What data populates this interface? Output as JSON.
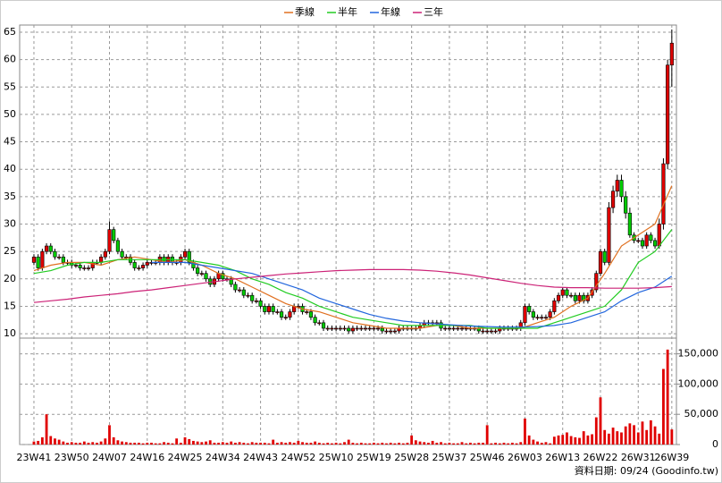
{
  "chart_data": {
    "type": "candlestick",
    "up_color": "#e00000",
    "down_color": "#00cc00",
    "volume_color": "#e00000",
    "grid": true,
    "annotation": "資料日期: 09/24 (Goodinfo.tw)",
    "xlim": [
      -3.4,
      153.1
    ],
    "xticks": [
      {
        "value": 0,
        "label": "23W41"
      },
      {
        "value": 9,
        "label": "23W50"
      },
      {
        "value": 18,
        "label": "24W07"
      },
      {
        "value": 27,
        "label": "24W16"
      },
      {
        "value": 36,
        "label": "24W25"
      },
      {
        "value": 45,
        "label": "24W34"
      },
      {
        "value": 54,
        "label": "24W43"
      },
      {
        "value": 63,
        "label": "24W52"
      },
      {
        "value": 72,
        "label": "25W10"
      },
      {
        "value": 81,
        "label": "25W19"
      },
      {
        "value": 90,
        "label": "25W28"
      },
      {
        "value": 99,
        "label": "25W37"
      },
      {
        "value": 108,
        "label": "25W46"
      },
      {
        "value": 117,
        "label": "26W03"
      },
      {
        "value": 126,
        "label": "26W13"
      },
      {
        "value": 135,
        "label": "26W22"
      },
      {
        "value": 144,
        "label": "26W31"
      },
      {
        "value": 152,
        "label": "26W39"
      }
    ],
    "ylim": [
      9.2,
      66.3
    ],
    "yticks": [
      10,
      15,
      20,
      25,
      30,
      35,
      40,
      45,
      50,
      55,
      60,
      65
    ],
    "y2lim": [
      0,
      176000
    ],
    "y2ticks": [
      0,
      {
        "value": 50000,
        "label": "50,000"
      },
      {
        "value": 100000,
        "label": "100,000"
      },
      {
        "value": 150000,
        "label": "150,000"
      }
    ],
    "open": [
      23,
      24,
      22,
      25,
      26,
      25,
      24,
      24,
      23,
      23,
      22.5,
      22.5,
      22,
      22,
      22,
      23,
      23,
      24,
      25,
      29,
      27,
      25,
      24,
      24,
      23,
      22,
      22,
      22.5,
      23,
      23,
      23,
      24,
      23,
      24,
      23,
      23,
      24,
      25,
      23,
      22,
      21,
      21,
      20,
      19,
      20,
      21,
      20,
      20,
      19,
      18,
      18,
      17,
      17,
      16,
      16,
      15,
      14,
      15,
      14,
      14,
      13,
      13,
      14,
      15,
      15,
      14,
      14,
      13,
      12,
      12,
      11,
      11,
      11,
      11,
      11,
      11,
      10.5,
      11,
      11,
      11,
      11,
      11,
      11,
      11,
      10.5,
      10.5,
      10.5,
      10.5,
      11,
      11,
      11,
      11,
      11,
      11.5,
      12,
      12,
      12,
      12,
      11,
      11,
      11,
      11,
      11,
      11,
      11,
      11,
      11,
      10.5,
      10.5,
      10.5,
      10.5,
      10.5,
      11,
      11,
      11,
      11,
      11,
      12,
      15,
      14,
      13,
      13,
      13,
      13,
      14,
      16,
      17,
      18,
      17,
      17,
      16,
      17,
      16,
      17,
      18,
      21,
      25,
      23,
      33,
      36,
      38,
      35,
      32,
      28,
      27,
      27,
      26,
      28,
      27,
      26,
      30,
      41,
      59
    ],
    "high": [
      24.5,
      24.5,
      25.5,
      26.5,
      26.5,
      25.5,
      24.5,
      24.5,
      23.5,
      23.5,
      23,
      23,
      22.5,
      22.5,
      23.5,
      23.5,
      24.5,
      25.5,
      30.5,
      29.5,
      27.5,
      25.5,
      24.5,
      24.5,
      23.5,
      22.5,
      23,
      23.5,
      23.5,
      23.5,
      24.5,
      24.5,
      24.5,
      24.5,
      23.5,
      24.5,
      25.5,
      25.5,
      23.5,
      22.5,
      21.5,
      21.5,
      20.5,
      20.5,
      21.5,
      21.5,
      20.5,
      20.5,
      19.5,
      18.5,
      18.5,
      17.5,
      17.5,
      16.5,
      16.5,
      15.5,
      15.5,
      15.5,
      14.5,
      14.5,
      13.5,
      14.5,
      15.5,
      15.5,
      15.5,
      14.5,
      14.5,
      13.5,
      12.5,
      12.5,
      11.5,
      11.5,
      11.5,
      11.5,
      11.5,
      11.5,
      11.5,
      11.5,
      11.5,
      11.5,
      11.5,
      11.5,
      11.5,
      11.5,
      11,
      11,
      11,
      11.5,
      11.5,
      11.5,
      11.5,
      11.5,
      12,
      12.5,
      12.5,
      12.5,
      12.5,
      12.5,
      11.5,
      11.5,
      11.5,
      11.5,
      11.5,
      11.5,
      11.5,
      11.5,
      11.5,
      11,
      11,
      11,
      11,
      11.5,
      11.5,
      11.5,
      11.5,
      11.5,
      12.5,
      15.5,
      15.5,
      14.5,
      13.5,
      13.5,
      13.5,
      14.5,
      16.5,
      17.5,
      18.5,
      18.5,
      17.5,
      17.5,
      17.5,
      17.5,
      17.5,
      18.5,
      21.5,
      25.5,
      25.5,
      34,
      37,
      39,
      39,
      36,
      33,
      28.5,
      27.5,
      27.5,
      28.5,
      28.5,
      27.5,
      31,
      42,
      60,
      65.5
    ],
    "low": [
      22.5,
      21.5,
      21.5,
      24.5,
      24.5,
      23.5,
      23.5,
      22.5,
      22.5,
      22,
      22,
      21.5,
      21.5,
      21.5,
      21.5,
      22.5,
      22.5,
      23.5,
      24.5,
      26.5,
      24.5,
      23.5,
      23.5,
      22.5,
      21.5,
      21.5,
      21.5,
      22,
      22.5,
      22.5,
      22.5,
      22.5,
      22.5,
      22.5,
      22.5,
      22.5,
      23.5,
      22.5,
      21.5,
      20.5,
      20.5,
      19.5,
      18.5,
      18.5,
      19.5,
      19.5,
      19.5,
      18.5,
      17.5,
      17.5,
      16.5,
      16.5,
      15.5,
      15.5,
      14.5,
      13.5,
      13.5,
      13.5,
      13.5,
      12.5,
      12.5,
      12.5,
      13.5,
      14.5,
      13.5,
      13.5,
      12.5,
      11.5,
      11.5,
      10.5,
      10.5,
      10.5,
      10.5,
      10.5,
      10.5,
      10,
      10,
      10.5,
      10.5,
      10.5,
      10.5,
      10.5,
      10.5,
      10,
      10,
      10,
      10,
      10,
      10.5,
      10.5,
      10.5,
      10.5,
      10.5,
      11,
      11.5,
      11.5,
      11.5,
      10.5,
      10.5,
      10.5,
      10.5,
      10.5,
      10.5,
      10.5,
      10.5,
      10.5,
      10,
      10,
      10,
      10,
      10,
      10,
      10.5,
      10.5,
      10.5,
      10.5,
      10.5,
      11.5,
      13.5,
      12.5,
      12.5,
      12.5,
      12.5,
      12.5,
      13.5,
      15.5,
      16.5,
      16.5,
      16.5,
      15.5,
      15.5,
      15.5,
      15.5,
      16.5,
      17.5,
      20.5,
      22.5,
      22.5,
      32,
      35,
      34,
      31,
      27.5,
      26.5,
      26.5,
      25.5,
      25.5,
      26.5,
      25.5,
      25.5,
      29,
      40,
      55
    ],
    "close": [
      24,
      22,
      25,
      26,
      25,
      24,
      24,
      23,
      23,
      22.5,
      22.5,
      22,
      22,
      22,
      23,
      23,
      24,
      25,
      29,
      27,
      25,
      24,
      24,
      23,
      22,
      22,
      22.5,
      23,
      23,
      23,
      24,
      23,
      24,
      23,
      23,
      24,
      25,
      23,
      22,
      21,
      21,
      20,
      19,
      20,
      21,
      20,
      20,
      19,
      18,
      18,
      17,
      17,
      16,
      16,
      15,
      14,
      15,
      14,
      14,
      13,
      13,
      14,
      15,
      15,
      14,
      14,
      13,
      12,
      12,
      11,
      11,
      11,
      11,
      11,
      11,
      10.5,
      11,
      11,
      11,
      11,
      11,
      11,
      11,
      10.5,
      10.5,
      10.5,
      10.5,
      11,
      11,
      11,
      11,
      11,
      11.5,
      12,
      12,
      12,
      12,
      11,
      11,
      11,
      11,
      11,
      11,
      11,
      11,
      11,
      10.5,
      10.5,
      10.5,
      10.5,
      10.5,
      11,
      11,
      11,
      11,
      11,
      12,
      15,
      14,
      13,
      13,
      13,
      13,
      14,
      16,
      17,
      18,
      17,
      17,
      16,
      17,
      16,
      17,
      18,
      21,
      25,
      23,
      33,
      36,
      38,
      35,
      32,
      28,
      27,
      27,
      26,
      28,
      27,
      26,
      30,
      41,
      59,
      63
    ],
    "volume": [
      5000,
      6000,
      12000,
      50000,
      14000,
      10000,
      8000,
      5000,
      3000,
      4000,
      3000,
      3000,
      5000,
      3000,
      4000,
      3000,
      5000,
      10000,
      32000,
      12000,
      7000,
      5000,
      4000,
      3000,
      3000,
      3000,
      2000,
      3000,
      3000,
      2000,
      2000,
      4000,
      3000,
      2000,
      10000,
      3000,
      12000,
      9000,
      6000,
      5000,
      4000,
      5000,
      7000,
      3000,
      3000,
      4000,
      3000,
      5000,
      3000,
      4000,
      3000,
      2000,
      4000,
      3000,
      3000,
      3000,
      2000,
      8000,
      3000,
      4000,
      3000,
      4000,
      3000,
      6000,
      4000,
      3000,
      3000,
      5000,
      3000,
      2000,
      3000,
      2000,
      3000,
      2000,
      4000,
      8000,
      3000,
      2000,
      3000,
      2000,
      2000,
      3000,
      2000,
      3000,
      2000,
      3000,
      2000,
      3000,
      2000,
      3000,
      15000,
      7000,
      5000,
      4000,
      3000,
      6000,
      3000,
      4000,
      2000,
      3000,
      2000,
      2000,
      4000,
      2000,
      3000,
      2000,
      3000,
      3000,
      32000,
      2000,
      3000,
      2000,
      3000,
      2000,
      3000,
      2000,
      4000,
      43000,
      15000,
      8000,
      5000,
      3000,
      4000,
      2000,
      13000,
      15000,
      16000,
      20000,
      14000,
      12000,
      11000,
      22000,
      15000,
      17000,
      45000,
      78000,
      24000,
      18000,
      28000,
      22000,
      20000,
      30000,
      35000,
      32000,
      20000,
      38000,
      24000,
      40000,
      30000,
      18000,
      125000,
      157000,
      25000
    ],
    "series": [
      {
        "name": "季線",
        "color": "#e07020",
        "x": [
          0,
          4,
          8,
          12,
          16,
          20,
          24,
          28,
          32,
          36,
          40,
          44,
          48,
          52,
          56,
          60,
          64,
          68,
          72,
          76,
          80,
          84,
          88,
          92,
          96,
          100,
          104,
          108,
          112,
          116,
          120,
          124,
          128,
          132,
          136,
          140,
          144,
          148,
          152
        ],
        "values": [
          21.5,
          22.5,
          23,
          23,
          22.5,
          23.5,
          24,
          23.5,
          23,
          23.5,
          22.5,
          21,
          20,
          18.5,
          17,
          15.5,
          14.5,
          14,
          13,
          12,
          11.5,
          11,
          11,
          11,
          11.5,
          11.5,
          11,
          11,
          11,
          11,
          12,
          13,
          15,
          16.5,
          21,
          26,
          28,
          30,
          37
        ]
      },
      {
        "name": "半年",
        "color": "#22cc22",
        "x": [
          0,
          4,
          8,
          12,
          16,
          20,
          24,
          28,
          32,
          36,
          40,
          44,
          48,
          52,
          56,
          60,
          64,
          68,
          72,
          76,
          80,
          84,
          88,
          92,
          96,
          100,
          104,
          108,
          112,
          116,
          120,
          124,
          128,
          132,
          136,
          140,
          144,
          148,
          152
        ],
        "values": [
          21,
          21.5,
          22.5,
          23,
          23,
          23.5,
          23.5,
          23.5,
          23.5,
          23.5,
          23,
          22.5,
          21.5,
          20,
          19,
          17.5,
          16.5,
          15,
          14,
          13,
          12.5,
          12,
          11.5,
          11.5,
          11.5,
          11.5,
          11.5,
          11,
          11,
          11,
          11,
          12,
          13,
          14,
          15,
          18,
          23,
          25,
          29
        ]
      },
      {
        "name": "年線",
        "color": "#2266dd",
        "x": [
          28,
          32,
          36,
          40,
          44,
          48,
          52,
          56,
          60,
          64,
          68,
          72,
          76,
          80,
          84,
          88,
          92,
          96,
          100,
          104,
          108,
          112,
          116,
          120,
          124,
          128,
          132,
          136,
          140,
          144,
          148,
          152
        ],
        "values": [
          23,
          23,
          23,
          22.5,
          22,
          21.5,
          21,
          20,
          19,
          18,
          16.5,
          15.5,
          14.5,
          13.5,
          12.8,
          12.3,
          12,
          11.8,
          11.6,
          11.4,
          11.3,
          11.2,
          11.2,
          11.3,
          11.5,
          12,
          13,
          14,
          16,
          17.5,
          18.5,
          20.5
        ]
      },
      {
        "name": "三年",
        "color": "#cc2277",
        "x": [
          0,
          4,
          8,
          12,
          16,
          20,
          24,
          28,
          32,
          36,
          40,
          44,
          48,
          52,
          56,
          60,
          64,
          68,
          72,
          76,
          80,
          84,
          88,
          92,
          96,
          100,
          104,
          108,
          112,
          116,
          120,
          124,
          128,
          132,
          136,
          140,
          144,
          148,
          152
        ],
        "values": [
          15.7,
          16,
          16.3,
          16.7,
          17,
          17.3,
          17.7,
          18,
          18.4,
          18.8,
          19.2,
          19.6,
          20,
          20.3,
          20.6,
          20.9,
          21.1,
          21.3,
          21.5,
          21.6,
          21.7,
          21.7,
          21.7,
          21.6,
          21.4,
          21.1,
          20.7,
          20.2,
          19.7,
          19.2,
          18.8,
          18.5,
          18.4,
          18.4,
          18.3,
          18.3,
          18.3,
          18.4,
          18.6
        ]
      }
    ]
  }
}
